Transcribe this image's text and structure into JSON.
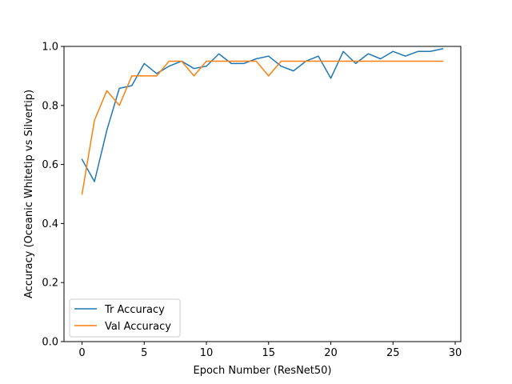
{
  "chart_data": {
    "type": "line",
    "title": "",
    "xlabel": "Epoch Number (ResNet50)",
    "ylabel": "Accuracy (Oceanic Whitetip vs Silvertip)",
    "xlim": [
      -1.45,
      30.45
    ],
    "ylim": [
      0.0,
      1.0
    ],
    "xticks": [
      0,
      5,
      10,
      15,
      20,
      25,
      30
    ],
    "yticks": [
      0.0,
      0.2,
      0.4,
      0.6,
      0.8,
      1.0
    ],
    "xtick_labels": [
      "0",
      "5",
      "10",
      "15",
      "20",
      "25",
      "30"
    ],
    "ytick_labels": [
      "0.0",
      "0.2",
      "0.4",
      "0.6",
      "0.8",
      "1.0"
    ],
    "grid": false,
    "legend_position": "lower-left",
    "x": [
      0,
      1,
      2,
      3,
      4,
      5,
      6,
      7,
      8,
      9,
      10,
      11,
      12,
      13,
      14,
      15,
      16,
      17,
      18,
      19,
      20,
      21,
      22,
      23,
      24,
      25,
      26,
      27,
      28,
      29
    ],
    "series": [
      {
        "name": "Tr Accuracy",
        "color": "#1f77b4",
        "values": [
          0.617,
          0.542,
          0.717,
          0.858,
          0.867,
          0.942,
          0.908,
          0.933,
          0.95,
          0.925,
          0.933,
          0.975,
          0.942,
          0.942,
          0.958,
          0.967,
          0.933,
          0.917,
          0.95,
          0.967,
          0.892,
          0.983,
          0.942,
          0.975,
          0.958,
          0.983,
          0.967,
          0.983,
          0.983,
          0.992
        ]
      },
      {
        "name": "Val Accuracy",
        "color": "#ff7f0e",
        "values": [
          0.5,
          0.75,
          0.85,
          0.8,
          0.9,
          0.9,
          0.9,
          0.95,
          0.95,
          0.9,
          0.95,
          0.95,
          0.95,
          0.95,
          0.95,
          0.9,
          0.95,
          0.95,
          0.95,
          0.95,
          0.95,
          0.95,
          0.95,
          0.95,
          0.95,
          0.95,
          0.95,
          0.95,
          0.95,
          0.95
        ]
      }
    ]
  }
}
